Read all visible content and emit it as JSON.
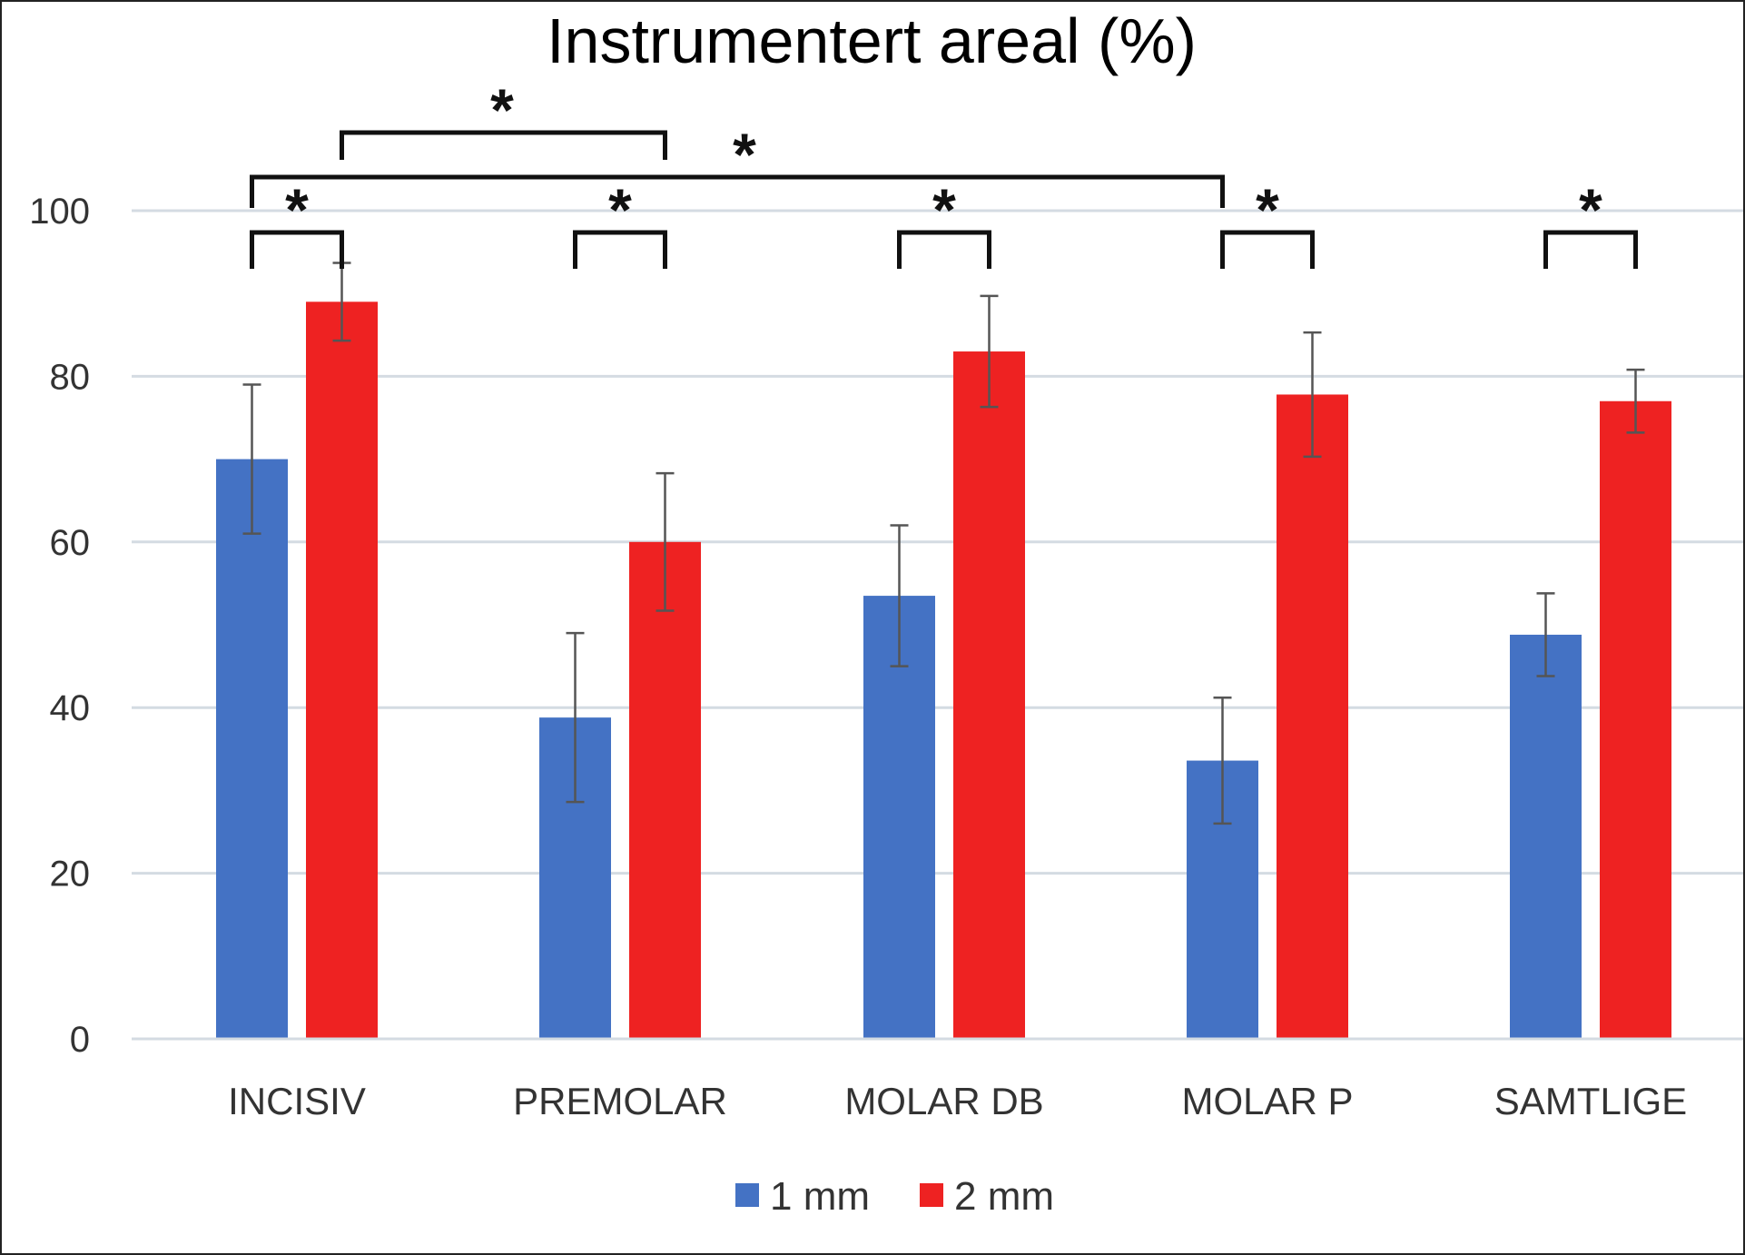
{
  "chart_data": {
    "type": "bar",
    "title": "Instrumentert areal (%)",
    "xlabel": "",
    "ylabel": "",
    "ylim": [
      0,
      100
    ],
    "yticks": [
      "0",
      "20",
      "40",
      "60",
      "80",
      "100"
    ],
    "grid": "horizontal",
    "legend_position": "bottom",
    "categories": [
      "INCISIV",
      "PREMOLAR",
      "MOLAR DB",
      "MOLAR P",
      "SAMTLIGE"
    ],
    "series": [
      {
        "name": "1 mm",
        "color": "#4472C4",
        "values": [
          70,
          38.8,
          53.5,
          33.6,
          48.8
        ],
        "error": [
          9,
          10.2,
          8.5,
          7.6,
          5
        ]
      },
      {
        "name": "2 mm",
        "color": "#EE2222",
        "values": [
          89,
          60,
          83,
          77.8,
          77
        ],
        "error": [
          4.7,
          8.3,
          6.7,
          7.5,
          3.8
        ]
      }
    ],
    "significance_marker": "*",
    "brackets": [
      {
        "from_category": "INCISIV",
        "from_series": "1 mm",
        "to_category": "INCISIV",
        "to_series": "2 mm",
        "label": "*"
      },
      {
        "from_category": "PREMOLAR",
        "from_series": "1 mm",
        "to_category": "PREMOLAR",
        "to_series": "2 mm",
        "label": "*"
      },
      {
        "from_category": "MOLAR DB",
        "from_series": "1 mm",
        "to_category": "MOLAR DB",
        "to_series": "2 mm",
        "label": "*"
      },
      {
        "from_category": "MOLAR P",
        "from_series": "1 mm",
        "to_category": "MOLAR P",
        "to_series": "2 mm",
        "label": "*"
      },
      {
        "from_category": "SAMTLIGE",
        "from_series": "1 mm",
        "to_category": "SAMTLIGE",
        "to_series": "2 mm",
        "label": "*"
      },
      {
        "from_category": "INCISIV",
        "from_series": "2 mm",
        "to_category": "PREMOLAR",
        "to_series": "2 mm",
        "label": "*"
      },
      {
        "from_category": "INCISIV",
        "from_series": "1 mm",
        "to_category": "MOLAR P",
        "to_series": "1 mm",
        "label": "*"
      }
    ]
  }
}
